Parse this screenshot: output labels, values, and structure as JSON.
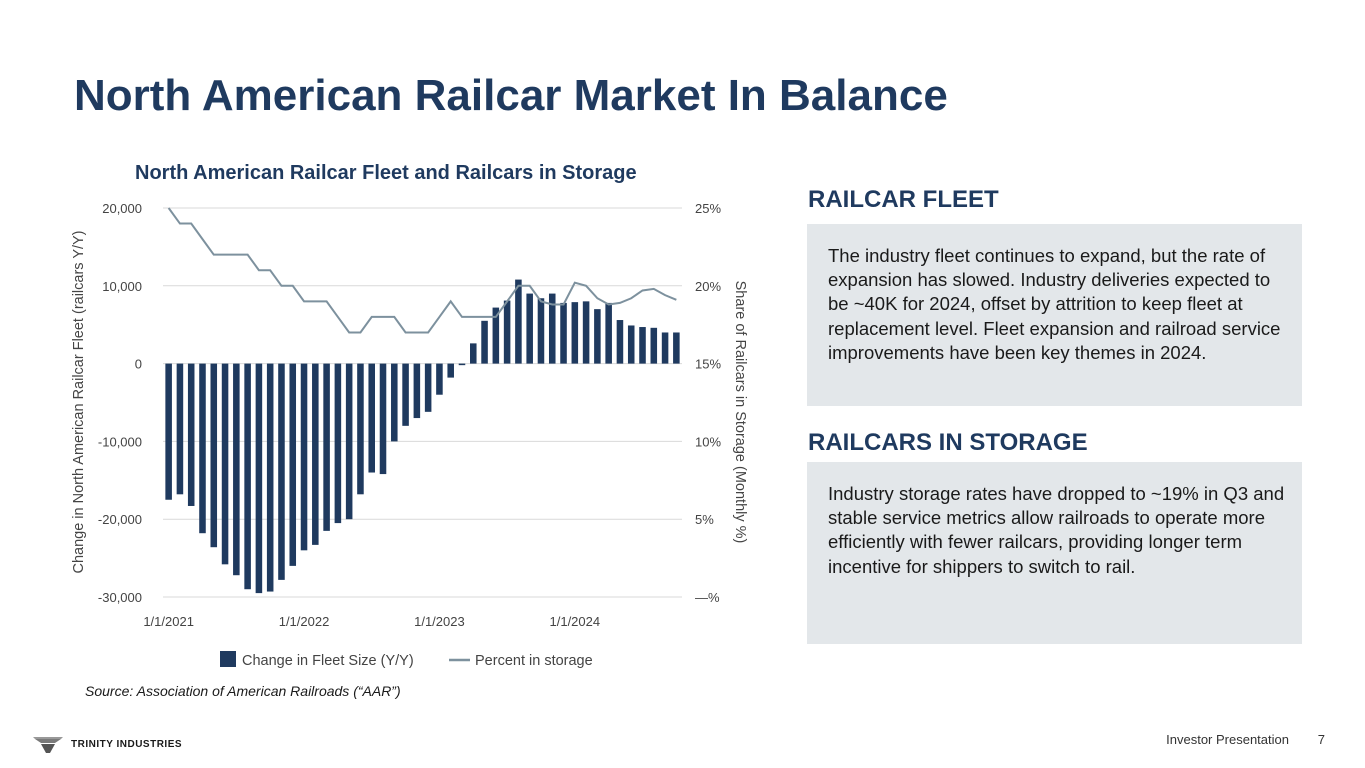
{
  "slide": {
    "title": "North American Railcar Market In Balance",
    "source": "Source: Association of American Railroads (“AAR”)",
    "footer_label": "Investor Presentation",
    "page_number": "7",
    "logo_text": "TRINITY INDUSTRIES"
  },
  "sections": {
    "fleet": {
      "heading": "RAILCAR FLEET",
      "body": "The industry fleet continues to expand, but the rate of expansion has slowed. Industry deliveries expected to be ~40K for 2024, offset by attrition to keep fleet at replacement level. Fleet expansion and railroad service improvements have been key themes in 2024."
    },
    "storage": {
      "heading": "RAILCARS IN STORAGE",
      "body": "Industry storage rates have dropped to ~19% in Q3 and stable service metrics allow railroads to operate more efficiently with fewer railcars, providing longer term incentive for shippers to switch to rail."
    }
  },
  "colors": {
    "bar": "#1f3a5f",
    "line": "#7d919e",
    "grid": "#d9d9d9",
    "panel": "#e3e7ea"
  },
  "chart_data": {
    "type": "bar",
    "title": "North American Railcar Fleet and Railcars in Storage",
    "ylabel": "Change in North American Railcar Fleet (railcars Y/Y)",
    "y2label": "Share of Railcars in Storage (Monthly %)",
    "ylim": [
      -30000,
      20000
    ],
    "y2lim": [
      0,
      25
    ],
    "yticks": [
      "20,000",
      "10,000",
      "0",
      "-10,000",
      "-20,000",
      "-30,000"
    ],
    "y2ticks": [
      "25%",
      "20%",
      "15%",
      "10%",
      "5%",
      "—%"
    ],
    "xticks": [
      {
        "index": 0,
        "label": "1/1/2021"
      },
      {
        "index": 12,
        "label": "1/1/2022"
      },
      {
        "index": 24,
        "label": "1/1/2023"
      },
      {
        "index": 36,
        "label": "1/1/2024"
      }
    ],
    "series": [
      {
        "name": "Change in Fleet Size (Y/Y)",
        "kind": "bar",
        "values": [
          -17500,
          -16800,
          -18300,
          -21800,
          -23600,
          -25800,
          -27200,
          -29000,
          -29500,
          -29300,
          -27800,
          -26000,
          -24000,
          -23300,
          -21500,
          -20500,
          -20000,
          -16800,
          -14000,
          -14200,
          -10000,
          -8000,
          -7000,
          -6200,
          -4000,
          -1800,
          -200,
          2600,
          5500,
          7200,
          8100,
          10800,
          9000,
          8400,
          9000,
          7800,
          7900,
          8000,
          7000,
          7800,
          5600,
          4900,
          4700,
          4600,
          4000,
          4000
        ]
      },
      {
        "name": "Percent in storage",
        "kind": "line",
        "values": [
          25,
          24,
          24,
          23,
          22,
          22,
          22,
          22,
          21,
          21,
          20,
          20,
          19,
          19,
          19,
          18,
          17,
          17,
          18,
          18,
          18,
          17,
          17,
          17,
          18,
          19,
          18,
          18,
          18,
          18,
          19,
          20,
          20,
          19,
          18.8,
          18.8,
          20.2,
          20,
          19.2,
          18.8,
          18.9,
          19.2,
          19.7,
          19.8,
          19.4,
          19.1
        ]
      }
    ]
  }
}
